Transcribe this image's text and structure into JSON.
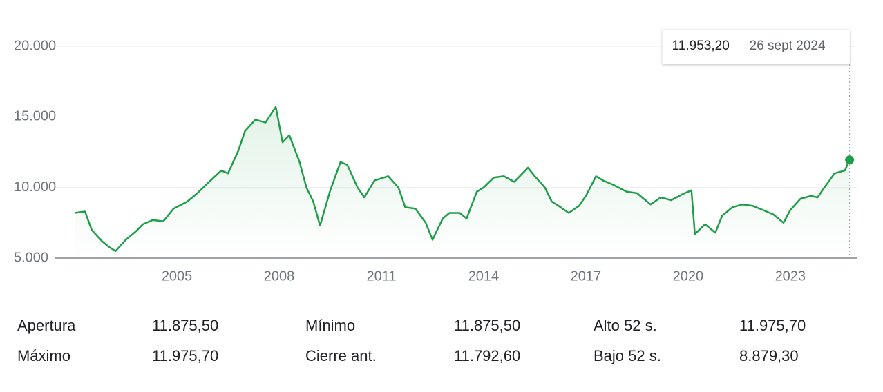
{
  "chart_data": {
    "type": "line",
    "color": "#1e9e48",
    "x": [
      2002.0,
      2002.3,
      2002.5,
      2002.8,
      2003.0,
      2003.2,
      2003.5,
      2003.8,
      2004.0,
      2004.3,
      2004.6,
      2004.9,
      2005.3,
      2005.6,
      2005.9,
      2006.3,
      2006.5,
      2006.8,
      2007.0,
      2007.3,
      2007.6,
      2007.9,
      2008.1,
      2008.3,
      2008.6,
      2008.8,
      2009.0,
      2009.2,
      2009.5,
      2009.8,
      2010.0,
      2010.3,
      2010.5,
      2010.8,
      2011.2,
      2011.5,
      2011.7,
      2012.0,
      2012.3,
      2012.5,
      2012.8,
      2013.0,
      2013.3,
      2013.5,
      2013.8,
      2014.0,
      2014.3,
      2014.6,
      2014.9,
      2015.3,
      2015.5,
      2015.8,
      2016.0,
      2016.2,
      2016.5,
      2016.8,
      2017.0,
      2017.3,
      2017.5,
      2017.8,
      2018.2,
      2018.5,
      2018.9,
      2019.2,
      2019.5,
      2019.9,
      2020.1,
      2020.2,
      2020.5,
      2020.8,
      2021.0,
      2021.3,
      2021.6,
      2021.9,
      2022.2,
      2022.5,
      2022.8,
      2023.0,
      2023.3,
      2023.6,
      2023.8,
      2024.0,
      2024.3,
      2024.6,
      2024.74
    ],
    "values": [
      8200,
      8300,
      7000,
      6200,
      5800,
      5500,
      6300,
      6900,
      7400,
      7700,
      7600,
      8500,
      9000,
      9600,
      10300,
      11200,
      11000,
      12600,
      14000,
      14800,
      14600,
      15700,
      13200,
      13700,
      11800,
      10000,
      9000,
      7300,
      9800,
      11800,
      11600,
      10000,
      9300,
      10500,
      10800,
      10000,
      8600,
      8500,
      7500,
      6300,
      7800,
      8200,
      8200,
      7800,
      9700,
      10000,
      10700,
      10800,
      10400,
      11400,
      10800,
      10000,
      9000,
      8700,
      8200,
      8700,
      9400,
      10800,
      10500,
      10200,
      9700,
      9600,
      8800,
      9300,
      9100,
      9600,
      9800,
      6700,
      7400,
      6800,
      8000,
      8600,
      8800,
      8700,
      8400,
      8100,
      7500,
      8400,
      9200,
      9400,
      9300,
      10000,
      11000,
      11200,
      11953.2
    ],
    "xlim": [
      2001.43,
      2024.95
    ],
    "xticks": [
      2005,
      2008,
      2011,
      2014,
      2017,
      2020,
      2023
    ],
    "ylim": [
      5000,
      20000
    ],
    "yticks": [
      {
        "value": 5000,
        "label": "5.000"
      },
      {
        "value": 10000,
        "label": "10.000"
      },
      {
        "value": 15000,
        "label": "15.000"
      },
      {
        "value": 20000,
        "label": "20.000"
      }
    ],
    "grid": true,
    "highlight": {
      "x": 2024.74,
      "value": 11953.2,
      "value_label": "11.953,20",
      "date": "26 sept 2024"
    }
  },
  "stats": {
    "rows": [
      [
        "Apertura",
        "11.875,50",
        "Mínimo",
        "11.875,50",
        "Alto 52 s.",
        "11.975,70"
      ],
      [
        "Máximo",
        "11.975,70",
        "Cierre ant.",
        "11.792,60",
        "Bajo 52 s.",
        "8.879,30"
      ]
    ]
  }
}
